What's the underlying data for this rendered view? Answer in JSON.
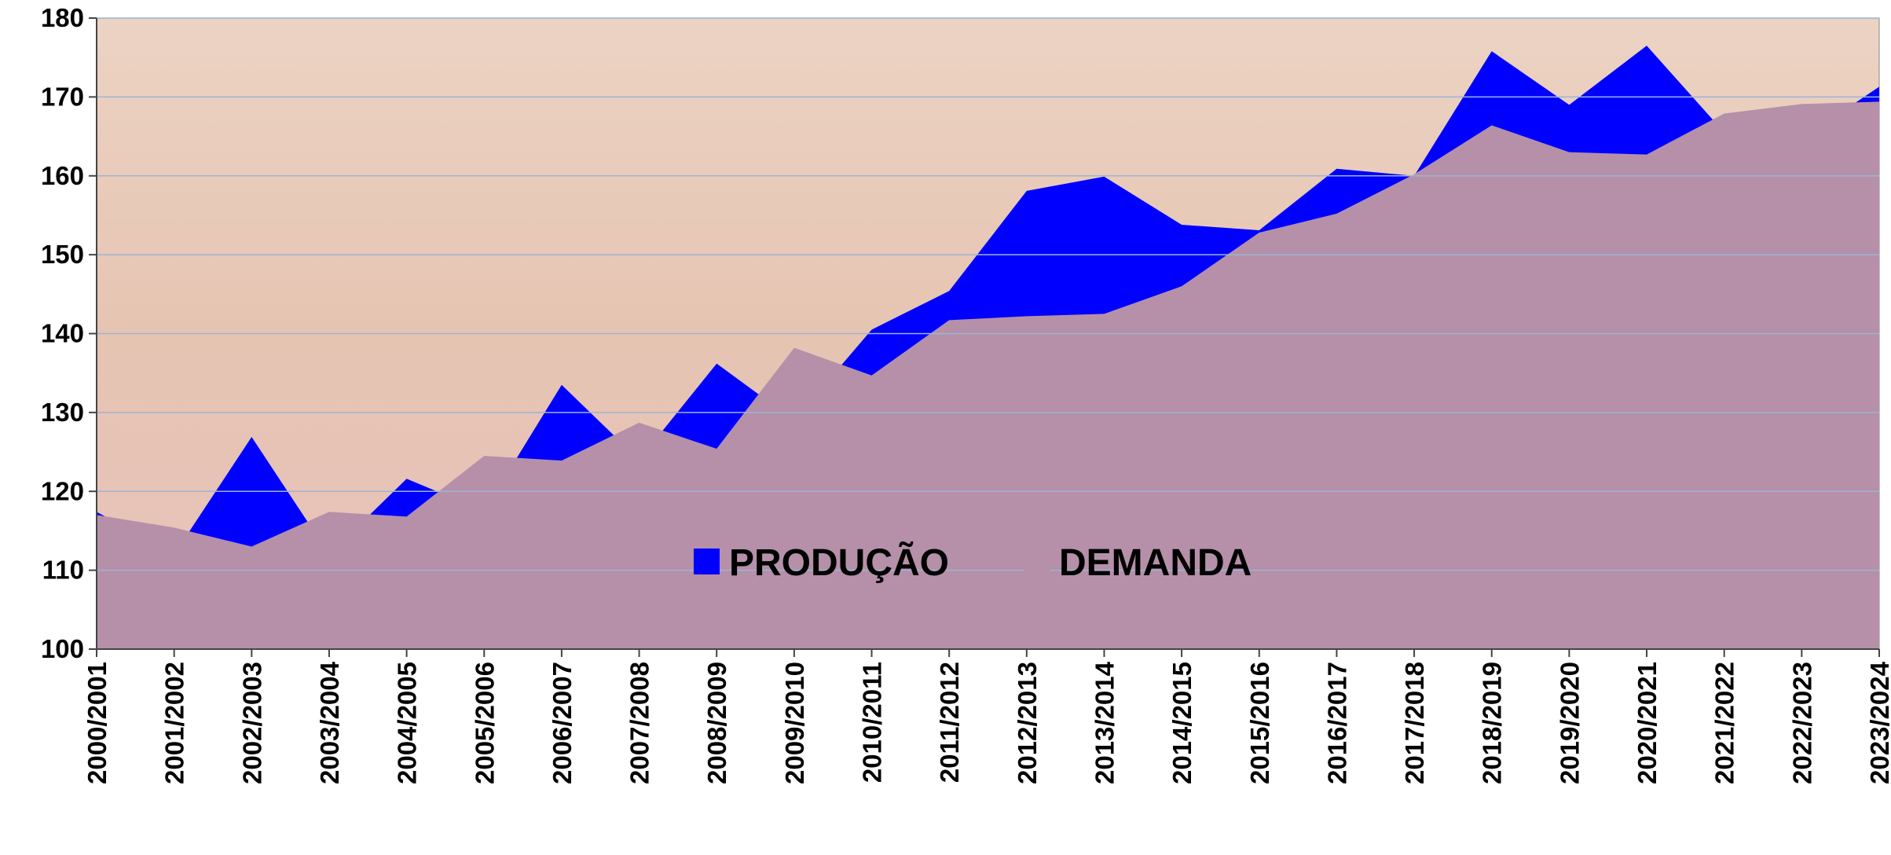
{
  "chart_data": {
    "type": "area",
    "categories": [
      "2000/2001",
      "2001/2002",
      "2002/2003",
      "2003/2004",
      "2004/2005",
      "2005/2006",
      "2006/2007",
      "2007/2008",
      "2008/2009",
      "2009/2010",
      "2010/2011",
      "2011/2012",
      "2012/2013",
      "2013/2014",
      "2014/2015",
      "2015/2016",
      "2016/2017",
      "2017/2018",
      "2018/2019",
      "2019/2020",
      "2020/2021",
      "2021/2022",
      "2022/2023",
      "2023/2024"
    ],
    "series": [
      {
        "name": "PRODUÇÃO",
        "color": "#0000ff",
        "values": [
          117.4,
          112,
          126.9,
          112,
          121.6,
          117.5,
          133.5,
          124,
          136.2,
          129,
          140.5,
          145.4,
          158.1,
          159.9,
          153.8,
          153.1,
          160.9,
          160,
          175.8,
          169,
          176.5,
          165.5,
          164.7,
          171.3
        ]
      },
      {
        "name": "DEMANDA",
        "color": "#b590a8",
        "values": [
          117,
          115.4,
          113,
          117.4,
          116.8,
          124.5,
          123.9,
          128.7,
          125.4,
          138.2,
          134.7,
          141.7,
          142.2,
          142.5,
          146,
          152.8,
          155.2,
          160.2,
          166.4,
          163,
          162.7,
          167.9,
          169.1,
          169.4
        ]
      }
    ],
    "ylim": [
      100,
      180
    ],
    "yticks": [
      100,
      110,
      120,
      130,
      140,
      150,
      160,
      170,
      180
    ],
    "grid": true,
    "legend": "center"
  }
}
